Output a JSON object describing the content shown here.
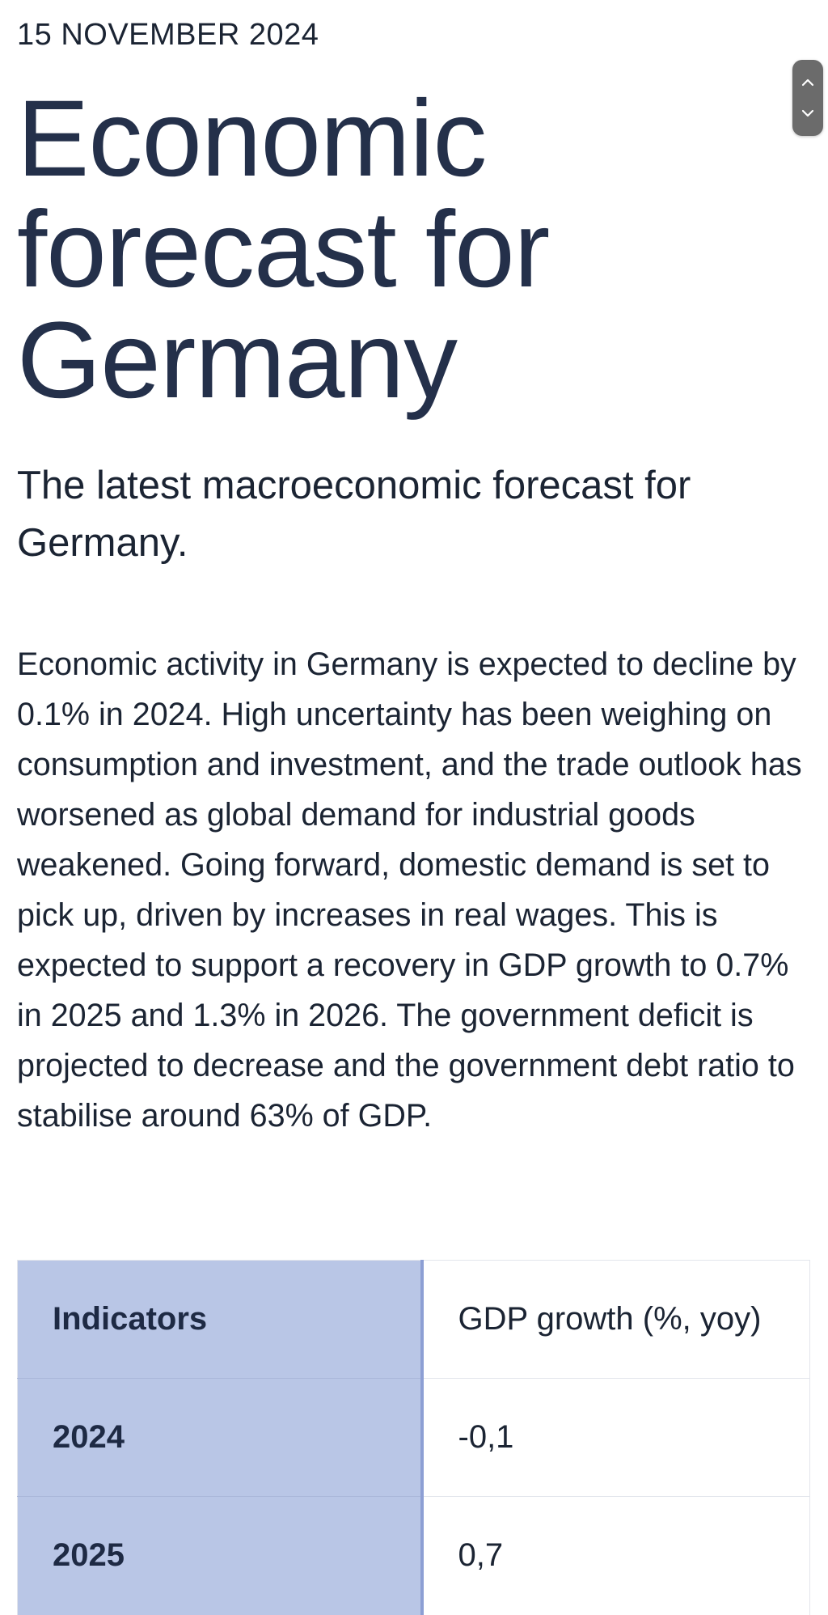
{
  "article": {
    "date": "15 NOVEMBER 2024",
    "title": "Economic forecast for Germany",
    "subtitle": "The latest macroeconomic forecast for Germany.",
    "body": "Economic activity in Germany is expected to decline by 0.1% in 2024. High uncertainty has been weighing on consumption and investment, and the trade outlook has worsened as global demand for industrial goods weakened. Going forward, domestic demand is set to pick up, driven by increases in real wages. This is expected to support a recovery in GDP growth to 0.7% in 2025 and 1.3% in 2026. The government deficit is projected to decrease and the government debt ratio to stabilise around 63% of GDP."
  },
  "table": {
    "header": {
      "label": "Indicators",
      "value": "GDP growth (%, yoy)"
    },
    "rows": [
      {
        "label": "2024",
        "value": "-0,1"
      },
      {
        "label": "2025",
        "value": "0,7"
      }
    ]
  },
  "scroll_widget": {
    "up_icon": "chevron-up-icon",
    "down_icon": "chevron-down-icon"
  },
  "colors": {
    "text": "#1b2433",
    "title": "#24304a",
    "table_header_bg": "#b9c6e6",
    "table_header_border": "#8d9fd4",
    "scroll_widget_bg": "#6b6b6b"
  }
}
